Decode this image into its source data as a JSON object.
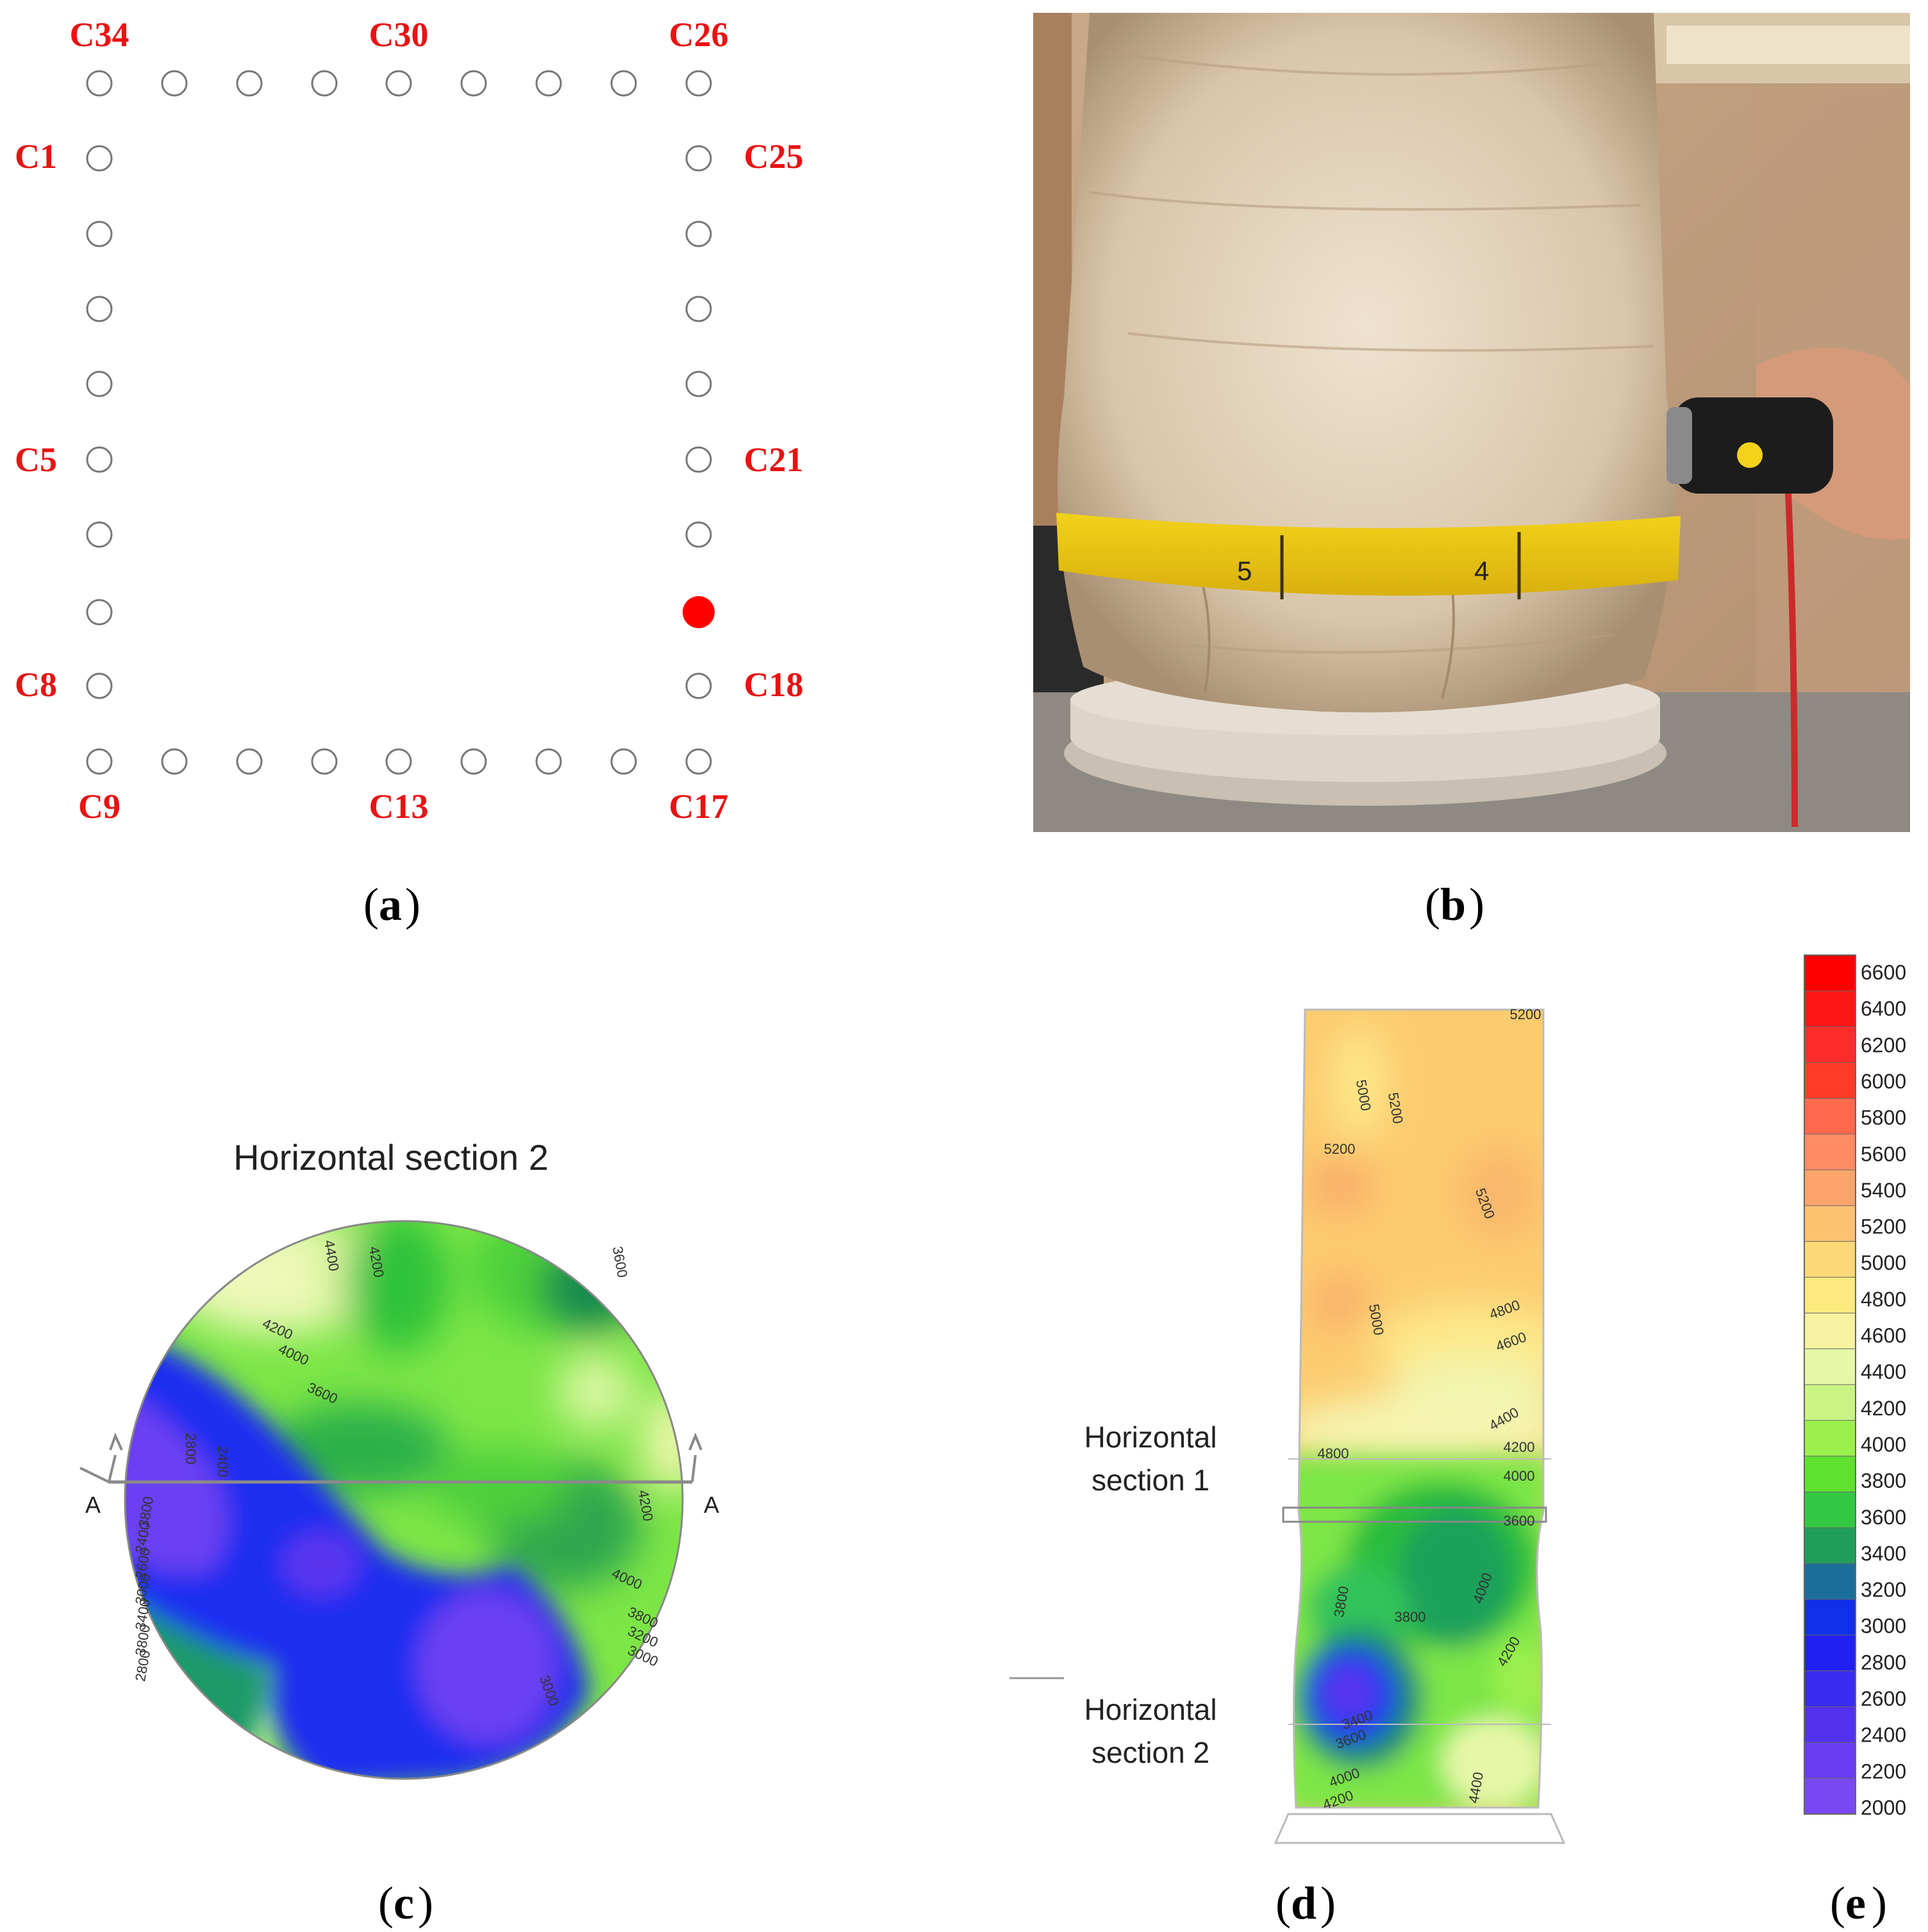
{
  "panel_a": {
    "labels": [
      "C34",
      "C30",
      "C26",
      "C1",
      "C25",
      "C5",
      "C21",
      "C8",
      "C18",
      "C9",
      "C13",
      "C17"
    ],
    "caption": "a"
  },
  "panel_b": {
    "caption": "b"
  },
  "panel_c": {
    "title": "Horizontal section 2",
    "section_mark": "A",
    "contours": [
      "4400",
      "4200",
      "3600",
      "4200",
      "4000",
      "3600",
      "2800",
      "2400",
      "3800",
      "2400",
      "2600",
      "3000",
      "3400",
      "3800",
      "2800",
      "4200",
      "4000",
      "3800",
      "3200",
      "3000",
      "3000"
    ],
    "caption": "c"
  },
  "panel_d": {
    "section1": [
      "Horizontal",
      "section 1"
    ],
    "section2": [
      "Horizontal",
      "section 2"
    ],
    "contours": [
      "5200",
      "5000",
      "5200",
      "5200",
      "5200",
      "5000",
      "4800",
      "4600",
      "4800",
      "4400",
      "4200",
      "4000",
      "3600",
      "3800",
      "3800",
      "4000",
      "4200",
      "3400",
      "3600",
      "4000",
      "4200",
      "4400"
    ],
    "caption": "d"
  },
  "panel_e": {
    "caption": "e"
  },
  "legend": {
    "ticks": [
      "6600",
      "6400",
      "6200",
      "6000",
      "5800",
      "5600",
      "5400",
      "5200",
      "5000",
      "4800",
      "4600",
      "4400",
      "4200",
      "4000",
      "3800",
      "3600",
      "3400",
      "3200",
      "3000",
      "2800",
      "2600",
      "2400",
      "2200",
      "2000"
    ],
    "colors": [
      "#ff0000",
      "#ff1616",
      "#ff2c2c",
      "#ff3a26",
      "#ff6a4d",
      "#ff8c64",
      "#fca56a",
      "#fbc271",
      "#fcd976",
      "#fcea7e",
      "#f7f2a0",
      "#e6f7a8",
      "#c9f483",
      "#9bf04e",
      "#5fe22e",
      "#33c842",
      "#1f9e5a",
      "#1c6e9a",
      "#1030e8",
      "#2020f2",
      "#3a2cf0",
      "#5232ee",
      "#6a3cf0",
      "#7a48f2"
    ]
  }
}
